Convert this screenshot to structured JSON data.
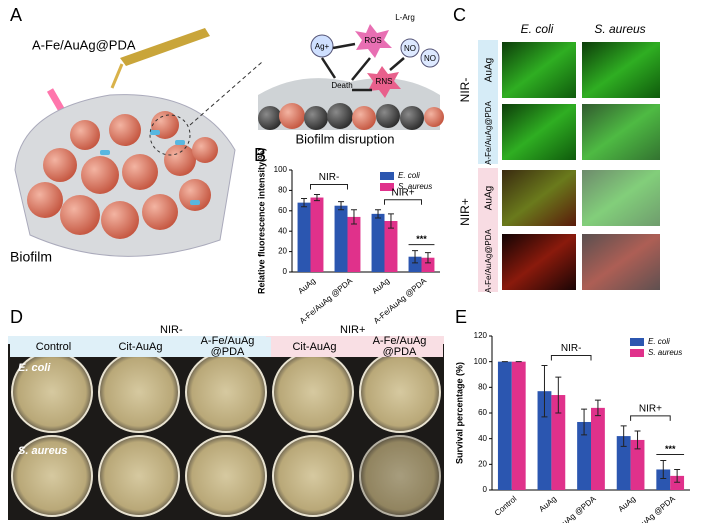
{
  "panel_a": {
    "label": "A",
    "agent": "A-Fe/AuAg@PDA",
    "biofilm": "Biofilm",
    "mechanism": {
      "ag": "Ag+",
      "ros": "ROS",
      "larg": "L-Arg",
      "no1": "NO",
      "no2": "NO",
      "rns": "RNS",
      "death": "Death"
    },
    "caption": "Biofilm disruption"
  },
  "panel_c": {
    "label": "C",
    "columns": [
      "E. coli",
      "S. aureus"
    ],
    "groups": [
      {
        "name": "NIR-",
        "rows": [
          "AuAg",
          "A-Fe/AuAg@PDA"
        ]
      },
      {
        "name": "NIR+",
        "rows": [
          "AuAg",
          "A-Fe/AuAg@PDA"
        ]
      }
    ]
  },
  "panel_d": {
    "label": "D",
    "groups": [
      "NIR-",
      "NIR+"
    ],
    "columns": [
      "Control",
      "Cit-AuAg",
      "A-Fe/AuAg @PDA",
      "Cit-AuAg",
      "A-Fe/AuAg @PDA"
    ],
    "rows": [
      "E. coli",
      "S. aureus"
    ]
  },
  "chart_data": [
    {
      "type": "bar",
      "label": "B",
      "ylabel": "Relative fluorescence intensity(%)",
      "categories": [
        "AuAg",
        "A-Fe/AuAg @PDA",
        "AuAg",
        "A-Fe/AuAg @PDA"
      ],
      "series": [
        {
          "name": "E. coli",
          "color": "#2b56b0",
          "values": [
            68,
            65,
            57,
            15
          ],
          "errors": [
            4,
            4,
            4,
            6
          ]
        },
        {
          "name": "S. aureus",
          "color": "#e0318b",
          "values": [
            73,
            54,
            50,
            14
          ],
          "errors": [
            3,
            7,
            7,
            5
          ]
        }
      ],
      "ylim": [
        0,
        100
      ],
      "yticks": [
        0,
        20,
        40,
        60,
        80,
        100
      ],
      "legend": "upper right",
      "annotations": [
        "NIR-",
        "NIR+",
        "***"
      ]
    },
    {
      "type": "bar",
      "label": "E",
      "ylabel": "Survival percentage (%)",
      "categories": [
        "Control",
        "AuAg",
        "A-Fe/AuAg @PDA",
        "AuAg",
        "A-Fe/AuAg @PDA"
      ],
      "series": [
        {
          "name": "E. coli",
          "color": "#2b56b0",
          "values": [
            100,
            77,
            53,
            42,
            16
          ],
          "errors": [
            0,
            20,
            10,
            8,
            7
          ]
        },
        {
          "name": "S. aureus",
          "color": "#e0318b",
          "values": [
            100,
            74,
            64,
            39,
            11
          ],
          "errors": [
            0,
            14,
            6,
            7,
            5
          ]
        }
      ],
      "ylim": [
        0,
        120
      ],
      "yticks": [
        0,
        20,
        40,
        60,
        80,
        100,
        120
      ],
      "legend": "upper right",
      "annotations": [
        "NIR-",
        "NIR+",
        "***"
      ]
    }
  ]
}
